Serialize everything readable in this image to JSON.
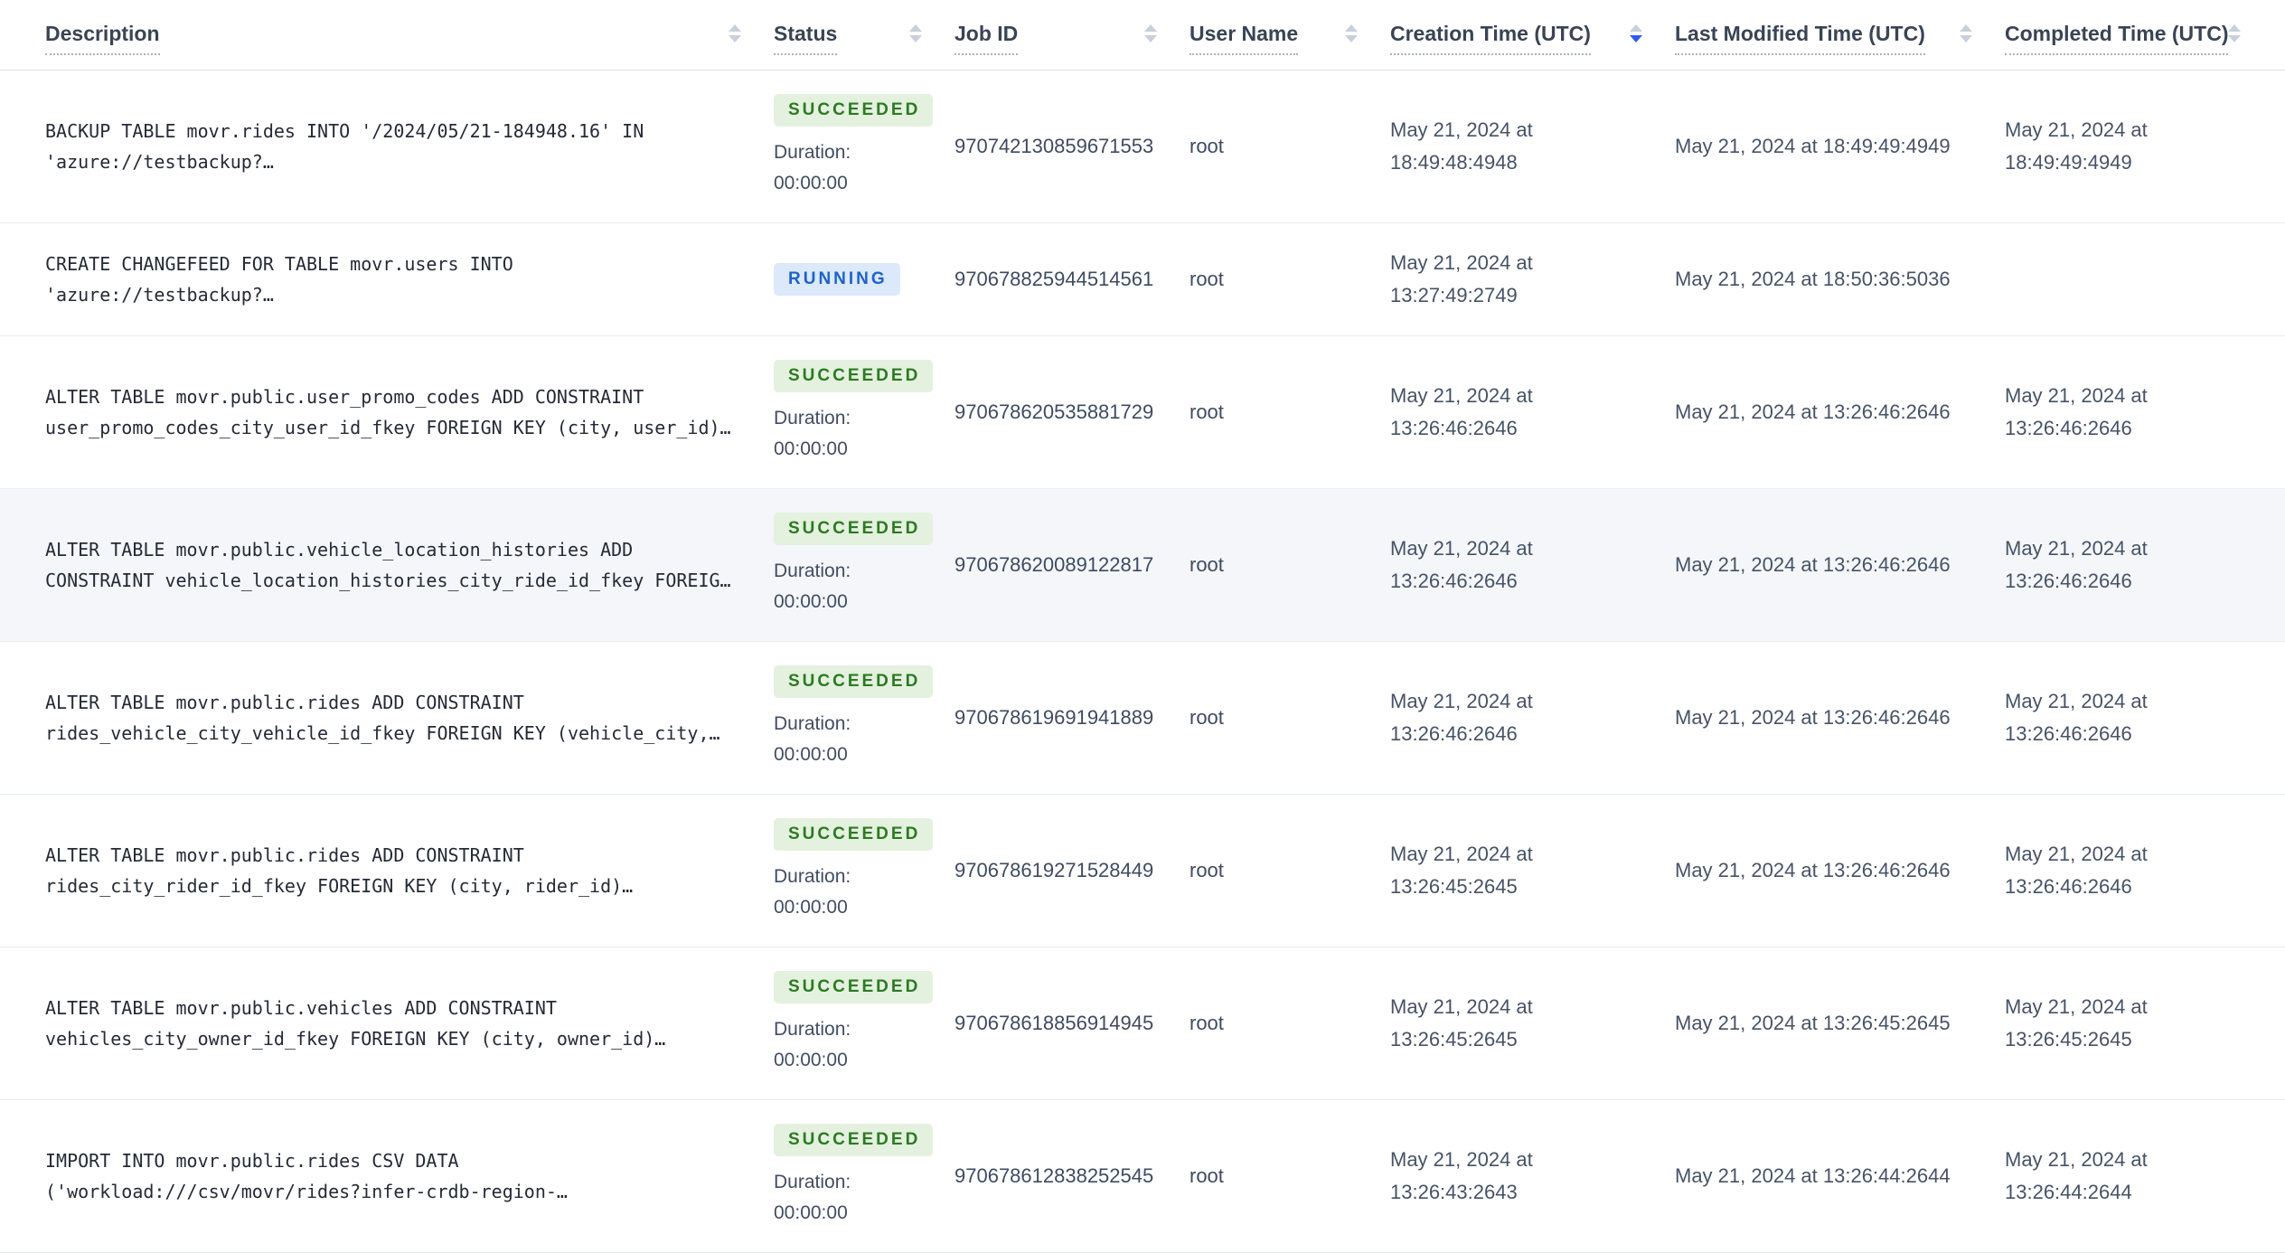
{
  "table": {
    "columns": [
      {
        "label": "Description",
        "sort": "none"
      },
      {
        "label": "Status",
        "sort": "none"
      },
      {
        "label": "Job ID",
        "sort": "none"
      },
      {
        "label": "User Name",
        "sort": "none"
      },
      {
        "label": "Creation Time (UTC)",
        "sort": "desc"
      },
      {
        "label": "Last Modified Time (UTC)",
        "sort": "none"
      },
      {
        "label": "Completed Time (UTC)",
        "sort": "none"
      }
    ],
    "duration_label": "Duration:",
    "rows": [
      {
        "description": "BACKUP TABLE movr.rides INTO '/2024/05/21-184948.16' IN 'azure://testbackup?…",
        "status": "SUCCEEDED",
        "status_type": "succeeded",
        "duration": "00:00:00",
        "job_id": "970742130859671553",
        "user": "root",
        "created": "May 21, 2024 at 18:49:48:4948",
        "modified": "May 21, 2024 at 18:49:49:4949",
        "completed": "May 21, 2024 at 18:49:49:4949",
        "highlighted": false
      },
      {
        "description": "CREATE CHANGEFEED FOR TABLE movr.users INTO 'azure://testbackup?…",
        "status": "RUNNING",
        "status_type": "running",
        "duration": "",
        "job_id": "970678825944514561",
        "user": "root",
        "created": "May 21, 2024 at 13:27:49:2749",
        "modified": "May 21, 2024 at 18:50:36:5036",
        "completed": "",
        "highlighted": false
      },
      {
        "description": "ALTER TABLE movr.public.user_promo_codes ADD CONSTRAINT user_promo_codes_city_user_id_fkey FOREIGN KEY (city, user_id)…",
        "status": "SUCCEEDED",
        "status_type": "succeeded",
        "duration": "00:00:00",
        "job_id": "970678620535881729",
        "user": "root",
        "created": "May 21, 2024 at 13:26:46:2646",
        "modified": "May 21, 2024 at 13:26:46:2646",
        "completed": "May 21, 2024 at 13:26:46:2646",
        "highlighted": false
      },
      {
        "description": "ALTER TABLE movr.public.vehicle_location_histories ADD CONSTRAINT vehicle_location_histories_city_ride_id_fkey FOREIG…",
        "status": "SUCCEEDED",
        "status_type": "succeeded",
        "duration": "00:00:00",
        "job_id": "970678620089122817",
        "user": "root",
        "created": "May 21, 2024 at 13:26:46:2646",
        "modified": "May 21, 2024 at 13:26:46:2646",
        "completed": "May 21, 2024 at 13:26:46:2646",
        "highlighted": true
      },
      {
        "description": "ALTER TABLE movr.public.rides ADD CONSTRAINT rides_vehicle_city_vehicle_id_fkey FOREIGN KEY (vehicle_city,…",
        "status": "SUCCEEDED",
        "status_type": "succeeded",
        "duration": "00:00:00",
        "job_id": "970678619691941889",
        "user": "root",
        "created": "May 21, 2024 at 13:26:46:2646",
        "modified": "May 21, 2024 at 13:26:46:2646",
        "completed": "May 21, 2024 at 13:26:46:2646",
        "highlighted": false
      },
      {
        "description": "ALTER TABLE movr.public.rides ADD CONSTRAINT rides_city_rider_id_fkey FOREIGN KEY (city, rider_id)…",
        "status": "SUCCEEDED",
        "status_type": "succeeded",
        "duration": "00:00:00",
        "job_id": "970678619271528449",
        "user": "root",
        "created": "May 21, 2024 at 13:26:45:2645",
        "modified": "May 21, 2024 at 13:26:46:2646",
        "completed": "May 21, 2024 at 13:26:46:2646",
        "highlighted": false
      },
      {
        "description": "ALTER TABLE movr.public.vehicles ADD CONSTRAINT vehicles_city_owner_id_fkey FOREIGN KEY (city, owner_id)…",
        "status": "SUCCEEDED",
        "status_type": "succeeded",
        "duration": "00:00:00",
        "job_id": "970678618856914945",
        "user": "root",
        "created": "May 21, 2024 at 13:26:45:2645",
        "modified": "May 21, 2024 at 13:26:45:2645",
        "completed": "May 21, 2024 at 13:26:45:2645",
        "highlighted": false
      },
      {
        "description": "IMPORT INTO movr.public.rides CSV DATA ('workload:///csv/movr/rides?infer-crdb-region-…",
        "status": "SUCCEEDED",
        "status_type": "succeeded",
        "duration": "00:00:00",
        "job_id": "970678612838252545",
        "user": "root",
        "created": "May 21, 2024 at 13:26:43:2643",
        "modified": "May 21, 2024 at 13:26:44:2644",
        "completed": "May 21, 2024 at 13:26:44:2644",
        "highlighted": false
      }
    ]
  },
  "colors": {
    "accent_sort_blue": "#2c5cf2",
    "succeeded_badge_bg": "#e4f1df",
    "succeeded_badge_text": "#2c7a22",
    "running_badge_bg": "#dbe9fa",
    "running_badge_text": "#1f62c8",
    "row_highlight_bg": "#f4f6fa"
  }
}
